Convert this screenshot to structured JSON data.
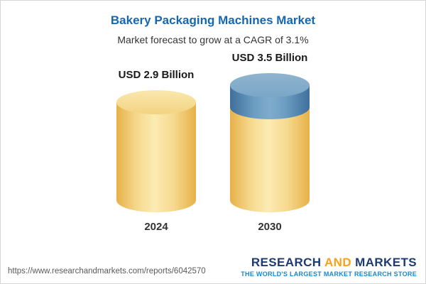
{
  "chart_data": {
    "type": "bar",
    "bar_style": "3d-cylinder",
    "title": "Bakery Packaging Machines Market",
    "subtitle": "Market forecast to grow at a CAGR of 3.1%",
    "categories": [
      "2024",
      "2030"
    ],
    "values": [
      2.9,
      3.5
    ],
    "value_labels": [
      "USD 2.9 Billion",
      "USD 3.5 Billion"
    ],
    "unit": "USD Billion",
    "cagr_percent": 3.1,
    "ylim": [
      0,
      3.5
    ],
    "grid": false,
    "legend": false,
    "growth_segment": {
      "category": "2030",
      "base_value": 2.9,
      "top_value": 3.5,
      "color": "#5E92B8"
    },
    "colors": {
      "title_blue": "#1766AE",
      "bar_yellow": "#F2D074",
      "bar_blue": "#5E92B8"
    }
  },
  "footer": {
    "url": "https://www.researchandmarkets.com/reports/6042570",
    "logo": {
      "research": "RESEARCH",
      "and": "AND",
      "markets": "MARKETS",
      "tagline": "THE WORLD'S LARGEST MARKET RESEARCH STORE"
    }
  }
}
